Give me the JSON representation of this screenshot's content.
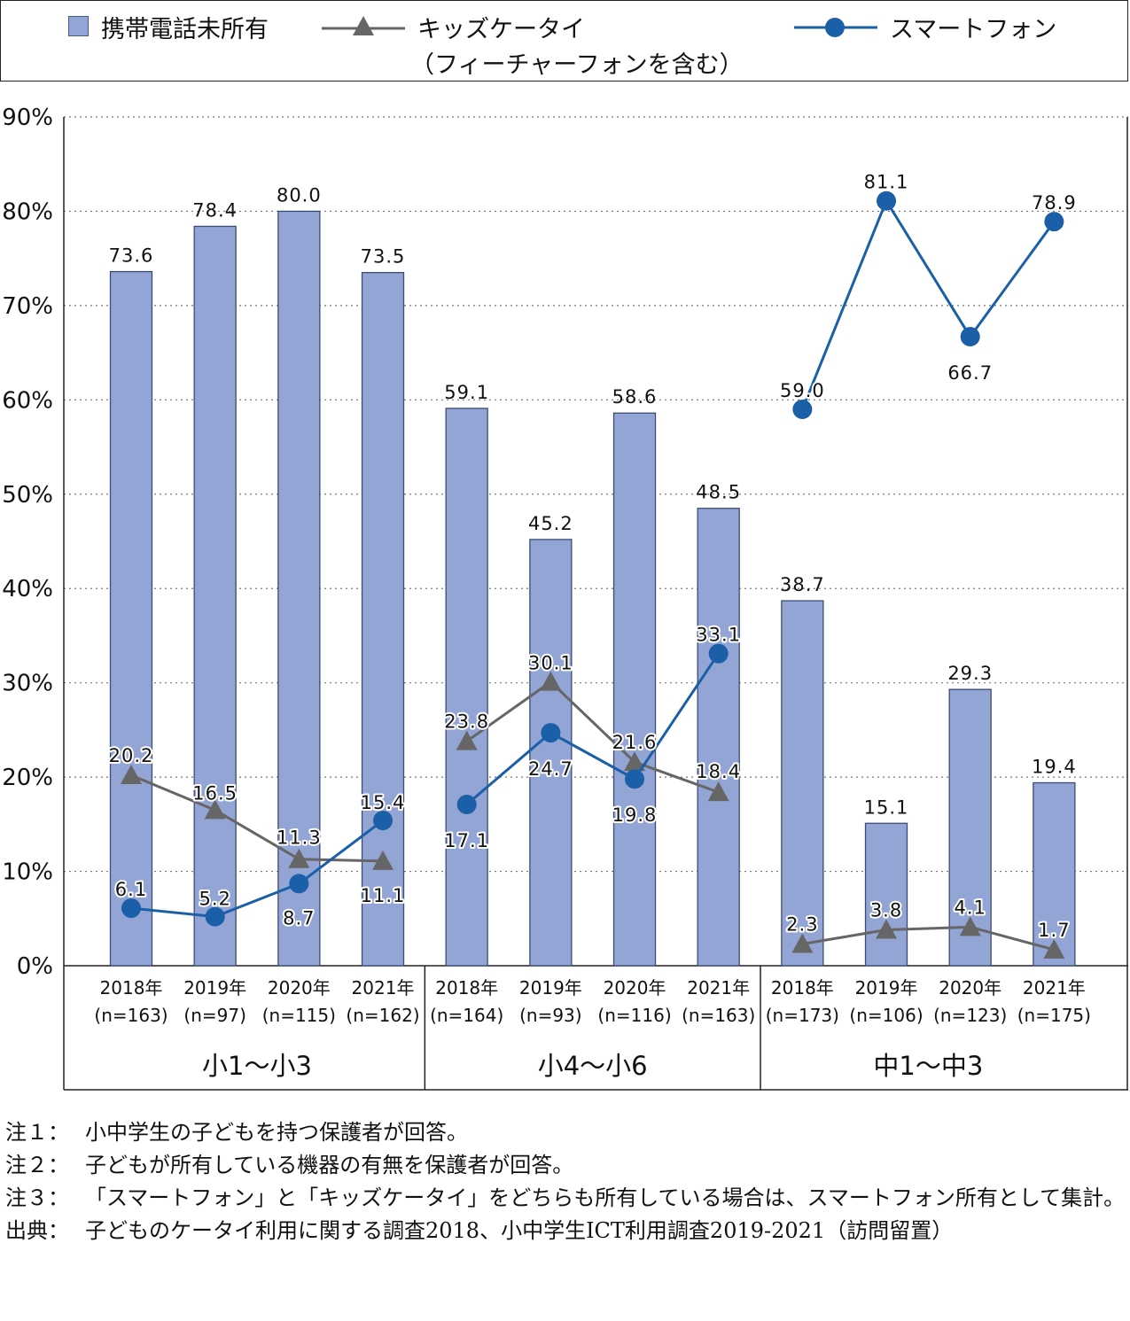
{
  "legend": {
    "no_phone": "携帯電話未所有",
    "kids_line1": "キッズケータイ",
    "kids_line2": "（フィーチャーフォンを含む）",
    "smartphone": "スマートフォン"
  },
  "colors": {
    "bar": "#93a5d4",
    "kids": "#666666",
    "smartphone": "#1a5fa8",
    "grid": "#777777"
  },
  "chart_data": {
    "type": "bar",
    "ylim": [
      0,
      90
    ],
    "y_ticks": [
      "0%",
      "10%",
      "20%",
      "30%",
      "40%",
      "50%",
      "60%",
      "70%",
      "80%",
      "90%"
    ],
    "grid": "dotted horizontal",
    "legend_position": "top",
    "groups": [
      {
        "name": "小1〜小3",
        "categories": [
          {
            "year": "2018年",
            "n": "(n=163)"
          },
          {
            "year": "2019年",
            "n": "(n=97)"
          },
          {
            "year": "2020年",
            "n": "(n=115)"
          },
          {
            "year": "2021年",
            "n": "(n=162)"
          }
        ]
      },
      {
        "name": "小4〜小6",
        "categories": [
          {
            "year": "2018年",
            "n": "(n=164)"
          },
          {
            "year": "2019年",
            "n": "(n=93)"
          },
          {
            "year": "2020年",
            "n": "(n=116)"
          },
          {
            "year": "2021年",
            "n": "(n=163)"
          }
        ]
      },
      {
        "name": "中1〜中3",
        "categories": [
          {
            "year": "2018年",
            "n": "(n=173)"
          },
          {
            "year": "2019年",
            "n": "(n=106)"
          },
          {
            "year": "2020年",
            "n": "(n=123)"
          },
          {
            "year": "2021年",
            "n": "(n=175)"
          }
        ]
      }
    ],
    "series": [
      {
        "name": "携帯電話未所有",
        "type": "bar",
        "values": [
          73.6,
          78.4,
          80.0,
          73.5,
          59.1,
          45.2,
          58.6,
          48.5,
          38.7,
          15.1,
          29.3,
          19.4
        ],
        "labels": [
          "73.6",
          "78.4",
          "80.0",
          "73.5",
          "59.1",
          "45.2",
          "58.6",
          "48.5",
          "38.7",
          "15.1",
          "29.3",
          "19.4"
        ]
      },
      {
        "name": "キッズケータイ（フィーチャーフォンを含む）",
        "type": "line",
        "marker": "triangle",
        "values": [
          20.2,
          16.5,
          11.3,
          11.1,
          23.8,
          30.1,
          21.6,
          18.4,
          2.3,
          3.8,
          4.1,
          1.7
        ],
        "labels": [
          "20.2",
          "16.5",
          "11.3",
          "11.1",
          "23.8",
          "30.1",
          "21.6",
          "18.4",
          "2.3",
          "3.8",
          "4.1",
          "1.7"
        ]
      },
      {
        "name": "スマートフォン",
        "type": "line",
        "marker": "circle",
        "values": [
          6.1,
          5.2,
          8.7,
          15.4,
          17.1,
          24.7,
          19.8,
          33.1,
          59.0,
          81.1,
          66.7,
          78.9
        ],
        "labels": [
          "6.1",
          "5.2",
          "8.7",
          "15.4",
          "17.1",
          "24.7",
          "19.8",
          "33.1",
          "59.0",
          "81.1",
          "66.7",
          "78.9"
        ]
      }
    ]
  },
  "notes": [
    {
      "label": "注１：",
      "text": "小中学生の子どもを持つ保護者が回答。"
    },
    {
      "label": "注２：",
      "text": "子どもが所有している機器の有無を保護者が回答。"
    },
    {
      "label": "注３：",
      "text": "「スマートフォン」と「キッズケータイ」をどちらも所有している場合は、スマートフォン所有として集計。"
    },
    {
      "label": "出典：",
      "text": "子どものケータイ利用に関する調査2018、小中学生ICT利用調査2019-2021（訪問留置）"
    }
  ]
}
